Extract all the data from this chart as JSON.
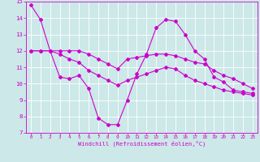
{
  "xlabel": "Windchill (Refroidissement éolien,°C)",
  "ylabel": "",
  "xlim": [
    -0.5,
    23.5
  ],
  "ylim": [
    7,
    15
  ],
  "yticks": [
    7,
    8,
    9,
    10,
    11,
    12,
    13,
    14,
    15
  ],
  "xticks": [
    0,
    1,
    2,
    3,
    4,
    5,
    6,
    7,
    8,
    9,
    10,
    11,
    12,
    13,
    14,
    15,
    16,
    17,
    18,
    19,
    20,
    21,
    22,
    23
  ],
  "background_color": "#cce8e8",
  "grid_color": "#ffffff",
  "line_color": "#cc00cc",
  "line1_x": [
    0,
    1,
    2,
    3,
    4,
    5,
    6,
    7,
    8,
    9,
    10,
    11,
    12,
    13,
    14,
    15,
    16,
    17,
    18,
    19,
    20,
    21,
    22,
    23
  ],
  "line1_y": [
    14.8,
    13.9,
    12.0,
    10.4,
    10.3,
    10.5,
    9.7,
    7.9,
    7.5,
    7.5,
    9.0,
    10.6,
    11.8,
    13.4,
    13.9,
    13.8,
    13.0,
    12.0,
    11.5,
    10.4,
    10.1,
    9.6,
    9.5,
    9.4
  ],
  "line2_x": [
    0,
    1,
    2,
    3,
    4,
    5,
    6,
    7,
    8,
    9,
    10,
    11,
    12,
    13,
    14,
    15,
    16,
    17,
    18,
    19,
    20,
    21,
    22,
    23
  ],
  "line2_y": [
    12.0,
    12.0,
    12.0,
    12.0,
    12.0,
    12.0,
    11.8,
    11.5,
    11.2,
    10.9,
    11.5,
    11.6,
    11.7,
    11.8,
    11.8,
    11.7,
    11.5,
    11.3,
    11.2,
    10.8,
    10.5,
    10.3,
    10.0,
    9.7
  ],
  "line3_x": [
    0,
    1,
    2,
    3,
    4,
    5,
    6,
    7,
    8,
    9,
    10,
    11,
    12,
    13,
    14,
    15,
    16,
    17,
    18,
    19,
    20,
    21,
    22,
    23
  ],
  "line3_y": [
    12.0,
    12.0,
    12.0,
    11.8,
    11.5,
    11.3,
    10.8,
    10.5,
    10.2,
    9.9,
    10.2,
    10.4,
    10.6,
    10.8,
    11.0,
    10.9,
    10.5,
    10.2,
    10.0,
    9.8,
    9.6,
    9.5,
    9.4,
    9.3
  ],
  "xlabel_fontsize": 5.0,
  "xtick_fontsize": 4.2,
  "ytick_fontsize": 5.2
}
